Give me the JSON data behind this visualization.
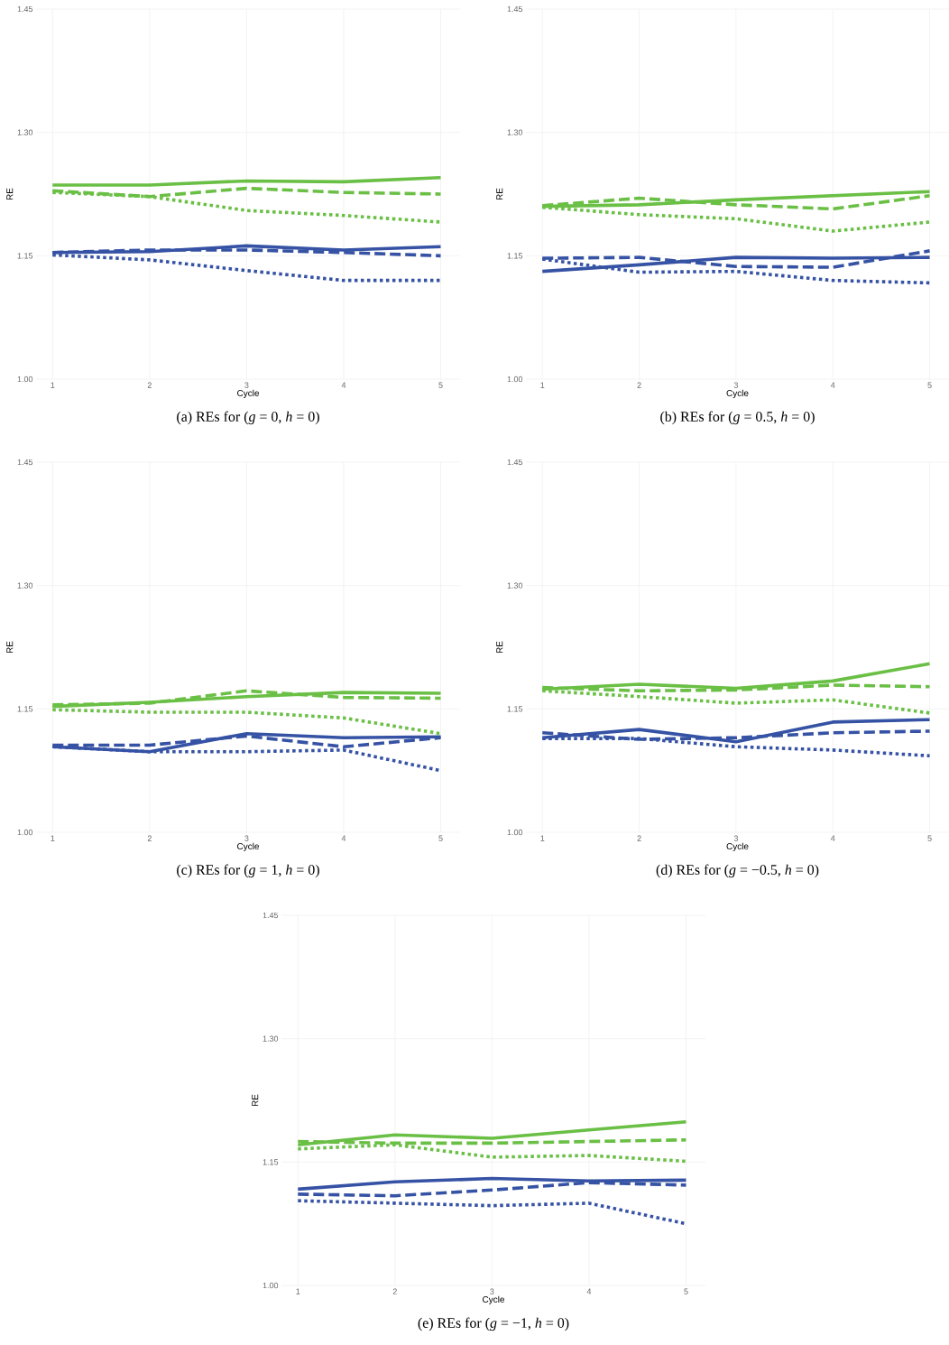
{
  "chart_data": [
    {
      "type": "line",
      "title": "(a) REs for (*g* = 0, *h* = 0)",
      "xlabel": "Cycle",
      "ylabel": "RE",
      "x": [
        1,
        2,
        3,
        4,
        5
      ],
      "xlim": [
        0.83,
        5.2
      ],
      "xticks": [
        1,
        2,
        3,
        4,
        5
      ],
      "ylim": [
        1.0,
        1.45
      ],
      "yticks": [
        {
          "value": 1.0,
          "label": "1.00"
        },
        {
          "value": 1.15,
          "label": "1.15"
        },
        {
          "value": 1.3,
          "label": "1.30"
        },
        {
          "value": 1.45,
          "label": "1.45"
        }
      ],
      "grid": true,
      "series": [
        {
          "color": "#6abf45",
          "line_style": "solid",
          "values": [
            1.236,
            1.236,
            1.241,
            1.24,
            1.245
          ]
        },
        {
          "color": "#6abf45",
          "line_style": "dashed",
          "values": [
            1.229,
            1.222,
            1.232,
            1.227,
            1.225
          ]
        },
        {
          "color": "#6abf45",
          "line_style": "dotted",
          "values": [
            1.227,
            1.222,
            1.205,
            1.199,
            1.191
          ]
        },
        {
          "color": "#3552a4",
          "line_style": "solid",
          "values": [
            1.154,
            1.155,
            1.162,
            1.157,
            1.161
          ]
        },
        {
          "color": "#3552a4",
          "line_style": "dashed",
          "values": [
            1.154,
            1.157,
            1.157,
            1.154,
            1.15
          ]
        },
        {
          "color": "#3552a4",
          "line_style": "dotted",
          "values": [
            1.151,
            1.145,
            1.132,
            1.12,
            1.12
          ]
        }
      ]
    },
    {
      "type": "line",
      "title": "(b) REs for (*g* = 0.5, *h* = 0)",
      "xlabel": "Cycle",
      "ylabel": "RE",
      "x": [
        1,
        2,
        3,
        4,
        5
      ],
      "xlim": [
        0.83,
        5.2
      ],
      "xticks": [
        1,
        2,
        3,
        4,
        5
      ],
      "ylim": [
        1.0,
        1.45
      ],
      "yticks": [
        {
          "value": 1.0,
          "label": "1.00"
        },
        {
          "value": 1.15,
          "label": "1.15"
        },
        {
          "value": 1.3,
          "label": "1.30"
        },
        {
          "value": 1.45,
          "label": "1.45"
        }
      ],
      "grid": true,
      "series": [
        {
          "color": "#6abf45",
          "line_style": "solid",
          "values": [
            1.21,
            1.212,
            1.218,
            1.223,
            1.228
          ]
        },
        {
          "color": "#6abf45",
          "line_style": "dashed",
          "values": [
            1.211,
            1.22,
            1.212,
            1.207,
            1.223
          ]
        },
        {
          "color": "#6abf45",
          "line_style": "dotted",
          "values": [
            1.209,
            1.2,
            1.195,
            1.18,
            1.191
          ]
        },
        {
          "color": "#3552a4",
          "line_style": "solid",
          "values": [
            1.131,
            1.139,
            1.148,
            1.147,
            1.148
          ]
        },
        {
          "color": "#3552a4",
          "line_style": "dashed",
          "values": [
            1.147,
            1.148,
            1.137,
            1.136,
            1.156
          ]
        },
        {
          "color": "#3552a4",
          "line_style": "dotted",
          "values": [
            1.146,
            1.13,
            1.131,
            1.12,
            1.117
          ]
        }
      ]
    },
    {
      "type": "line",
      "title": "(c) REs for (*g* = 1, *h* = 0)",
      "xlabel": "Cycle",
      "ylabel": "RE",
      "x": [
        1,
        2,
        3,
        4,
        5
      ],
      "xlim": [
        0.83,
        5.2
      ],
      "xticks": [
        1,
        2,
        3,
        4,
        5
      ],
      "ylim": [
        1.0,
        1.45
      ],
      "yticks": [
        {
          "value": 1.0,
          "label": "1.00"
        },
        {
          "value": 1.15,
          "label": "1.15"
        },
        {
          "value": 1.3,
          "label": "1.30"
        },
        {
          "value": 1.45,
          "label": "1.45"
        }
      ],
      "grid": true,
      "series": [
        {
          "color": "#6abf45",
          "line_style": "solid",
          "values": [
            1.153,
            1.158,
            1.165,
            1.17,
            1.169
          ]
        },
        {
          "color": "#6abf45",
          "line_style": "dashed",
          "values": [
            1.155,
            1.157,
            1.172,
            1.164,
            1.163
          ]
        },
        {
          "color": "#6abf45",
          "line_style": "dotted",
          "values": [
            1.149,
            1.146,
            1.146,
            1.139,
            1.12
          ]
        },
        {
          "color": "#3552a4",
          "line_style": "solid",
          "values": [
            1.104,
            1.098,
            1.12,
            1.115,
            1.116
          ]
        },
        {
          "color": "#3552a4",
          "line_style": "dashed",
          "values": [
            1.106,
            1.106,
            1.117,
            1.104,
            1.115
          ]
        },
        {
          "color": "#3552a4",
          "line_style": "dotted",
          "values": [
            1.104,
            1.098,
            1.098,
            1.1,
            1.075
          ]
        }
      ]
    },
    {
      "type": "line",
      "title": "(d) REs for (*g* = −0.5, *h* = 0)",
      "xlabel": "Cycle",
      "ylabel": "RE",
      "x": [
        1,
        2,
        3,
        4,
        5
      ],
      "xlim": [
        0.83,
        5.2
      ],
      "xticks": [
        1,
        2,
        3,
        4,
        5
      ],
      "ylim": [
        1.0,
        1.45
      ],
      "yticks": [
        {
          "value": 1.0,
          "label": "1.00"
        },
        {
          "value": 1.15,
          "label": "1.15"
        },
        {
          "value": 1.3,
          "label": "1.30"
        },
        {
          "value": 1.45,
          "label": "1.45"
        }
      ],
      "grid": true,
      "series": [
        {
          "color": "#6abf45",
          "line_style": "solid",
          "values": [
            1.174,
            1.18,
            1.175,
            1.184,
            1.205
          ]
        },
        {
          "color": "#6abf45",
          "line_style": "dashed",
          "values": [
            1.176,
            1.172,
            1.173,
            1.179,
            1.177
          ]
        },
        {
          "color": "#6abf45",
          "line_style": "dotted",
          "values": [
            1.172,
            1.165,
            1.157,
            1.161,
            1.145
          ]
        },
        {
          "color": "#3552a4",
          "line_style": "solid",
          "values": [
            1.115,
            1.125,
            1.11,
            1.134,
            1.137
          ]
        },
        {
          "color": "#3552a4",
          "line_style": "dashed",
          "values": [
            1.121,
            1.113,
            1.115,
            1.121,
            1.123
          ]
        },
        {
          "color": "#3552a4",
          "line_style": "dotted",
          "values": [
            1.114,
            1.114,
            1.104,
            1.1,
            1.093
          ]
        }
      ]
    },
    {
      "type": "line",
      "title": "(e) REs for (*g* = −1, *h* = 0)",
      "xlabel": "Cycle",
      "ylabel": "RE",
      "x": [
        1,
        2,
        3,
        4,
        5
      ],
      "xlim": [
        0.83,
        5.2
      ],
      "xticks": [
        1,
        2,
        3,
        4,
        5
      ],
      "ylim": [
        1.0,
        1.45
      ],
      "yticks": [
        {
          "value": 1.0,
          "label": "1.00"
        },
        {
          "value": 1.15,
          "label": "1.15"
        },
        {
          "value": 1.3,
          "label": "1.30"
        },
        {
          "value": 1.45,
          "label": "1.45"
        }
      ],
      "grid": true,
      "series": [
        {
          "color": "#6abf45",
          "line_style": "solid",
          "values": [
            1.171,
            1.183,
            1.179,
            1.189,
            1.199
          ]
        },
        {
          "color": "#6abf45",
          "line_style": "dashed",
          "values": [
            1.175,
            1.173,
            1.173,
            1.175,
            1.177
          ]
        },
        {
          "color": "#6abf45",
          "line_style": "dotted",
          "values": [
            1.166,
            1.171,
            1.156,
            1.158,
            1.151
          ]
        },
        {
          "color": "#3552a4",
          "line_style": "solid",
          "values": [
            1.117,
            1.126,
            1.13,
            1.127,
            1.128
          ]
        },
        {
          "color": "#3552a4",
          "line_style": "dashed",
          "values": [
            1.111,
            1.109,
            1.116,
            1.125,
            1.122
          ]
        },
        {
          "color": "#3552a4",
          "line_style": "dotted",
          "values": [
            1.103,
            1.1,
            1.097,
            1.1,
            1.075
          ]
        }
      ]
    }
  ]
}
